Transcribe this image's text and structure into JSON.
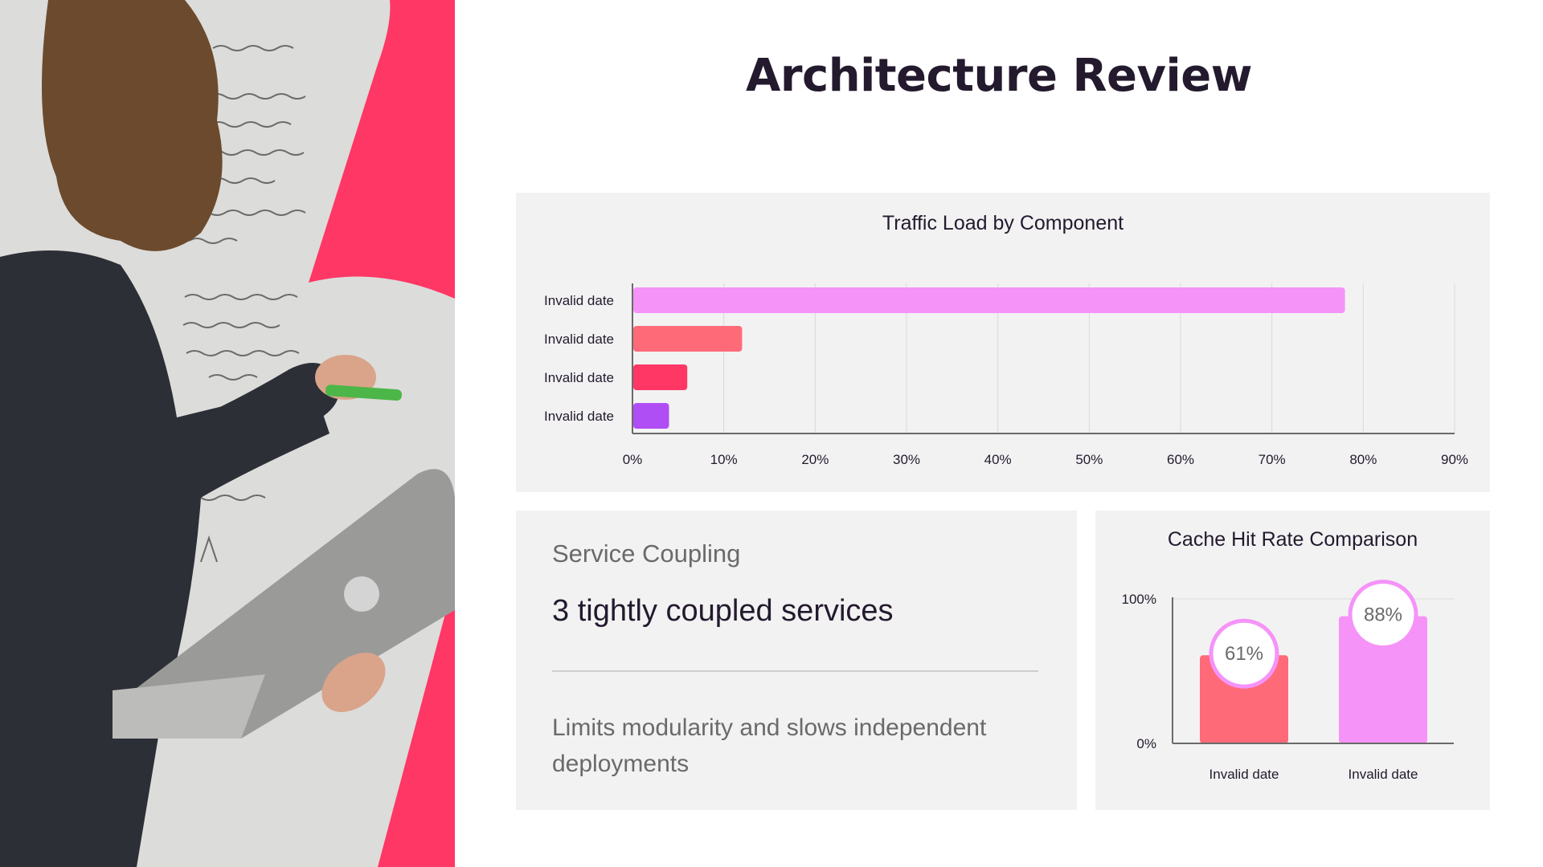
{
  "slide": {
    "title": "Architecture Review",
    "accent_color": "#ff3765",
    "hero_image": "person-writing-on-whiteboard-with-laptop"
  },
  "info_card": {
    "label": "Service Coupling",
    "value": "3 tightly coupled services",
    "description": "Limits modularity and slows independent deployments"
  },
  "chart_data": [
    {
      "type": "bar",
      "orientation": "horizontal",
      "title": "Traffic Load by Component",
      "categories": [
        "Invalid date",
        "Invalid date",
        "Invalid date",
        "Invalid date"
      ],
      "values": [
        78,
        12,
        6,
        4
      ],
      "colors": [
        "#f593f8",
        "#ff6a78",
        "#ff3765",
        "#b04ef5"
      ],
      "xlim": [
        0,
        90
      ],
      "x_ticks": [
        "0%",
        "10%",
        "20%",
        "30%",
        "40%",
        "50%",
        "60%",
        "70%",
        "80%",
        "90%"
      ],
      "grid": true,
      "legend": "none"
    },
    {
      "type": "bar",
      "orientation": "vertical",
      "title": "Cache Hit Rate Comparison",
      "categories": [
        "Invalid date",
        "Invalid date"
      ],
      "values": [
        61,
        88
      ],
      "data_labels": [
        "61%",
        "88%"
      ],
      "colors": [
        "#ff6a78",
        "#f593f8"
      ],
      "ylim": [
        0,
        100
      ],
      "y_ticks": [
        "0%",
        "100%"
      ],
      "grid": true,
      "legend": "none"
    }
  ]
}
